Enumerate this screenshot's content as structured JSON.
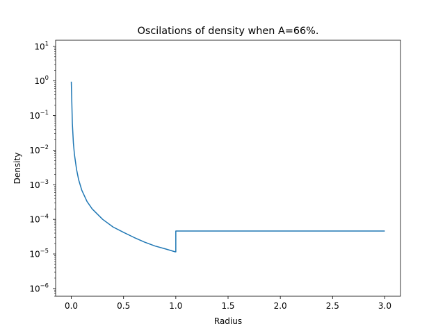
{
  "chart_data": {
    "type": "line",
    "title": "Oscilations of density when A=66%.",
    "xlabel": "Radius",
    "ylabel": "Density",
    "xlim": [
      -0.15,
      3.15
    ],
    "ylim": [
      6e-07,
      15
    ],
    "yscale": "log",
    "grid": false,
    "line_color": "#1f77b4",
    "x_ticks": [
      {
        "value": 0.0,
        "label": "0.0"
      },
      {
        "value": 0.5,
        "label": "0.5"
      },
      {
        "value": 1.0,
        "label": "1.0"
      },
      {
        "value": 1.5,
        "label": "1.5"
      },
      {
        "value": 2.0,
        "label": "2.0"
      },
      {
        "value": 2.5,
        "label": "2.5"
      },
      {
        "value": 3.0,
        "label": "3.0"
      }
    ],
    "y_ticks": [
      {
        "value": 10,
        "base": "10",
        "exp": "1"
      },
      {
        "value": 1,
        "base": "10",
        "exp": "0"
      },
      {
        "value": 0.1,
        "base": "10",
        "exp": "−1"
      },
      {
        "value": 0.01,
        "base": "10",
        "exp": "−2"
      },
      {
        "value": 0.001,
        "base": "10",
        "exp": "−3"
      },
      {
        "value": 0.0001,
        "base": "10",
        "exp": "−4"
      },
      {
        "value": 1e-05,
        "base": "10",
        "exp": "−5"
      },
      {
        "value": 1e-06,
        "base": "10",
        "exp": "−6"
      }
    ],
    "series": [
      {
        "x": [
          0.0,
          0.01,
          0.02,
          0.03,
          0.05,
          0.07,
          0.1,
          0.15,
          0.2,
          0.3,
          0.4,
          0.5,
          0.6,
          0.7,
          0.8,
          0.9,
          0.995,
          1.0,
          1.0,
          1.5,
          2.0,
          2.5,
          3.0
        ],
        "y": [
          0.95,
          0.06,
          0.016,
          0.0075,
          0.0028,
          0.0014,
          0.0007,
          0.00033,
          0.0002,
          0.0001,
          6e-05,
          4.2e-05,
          3e-05,
          2.2e-05,
          1.7e-05,
          1.4e-05,
          1.15e-05,
          1.15e-05,
          4.6e-05,
          4.6e-05,
          4.6e-05,
          4.6e-05,
          4.6e-05
        ]
      }
    ]
  }
}
